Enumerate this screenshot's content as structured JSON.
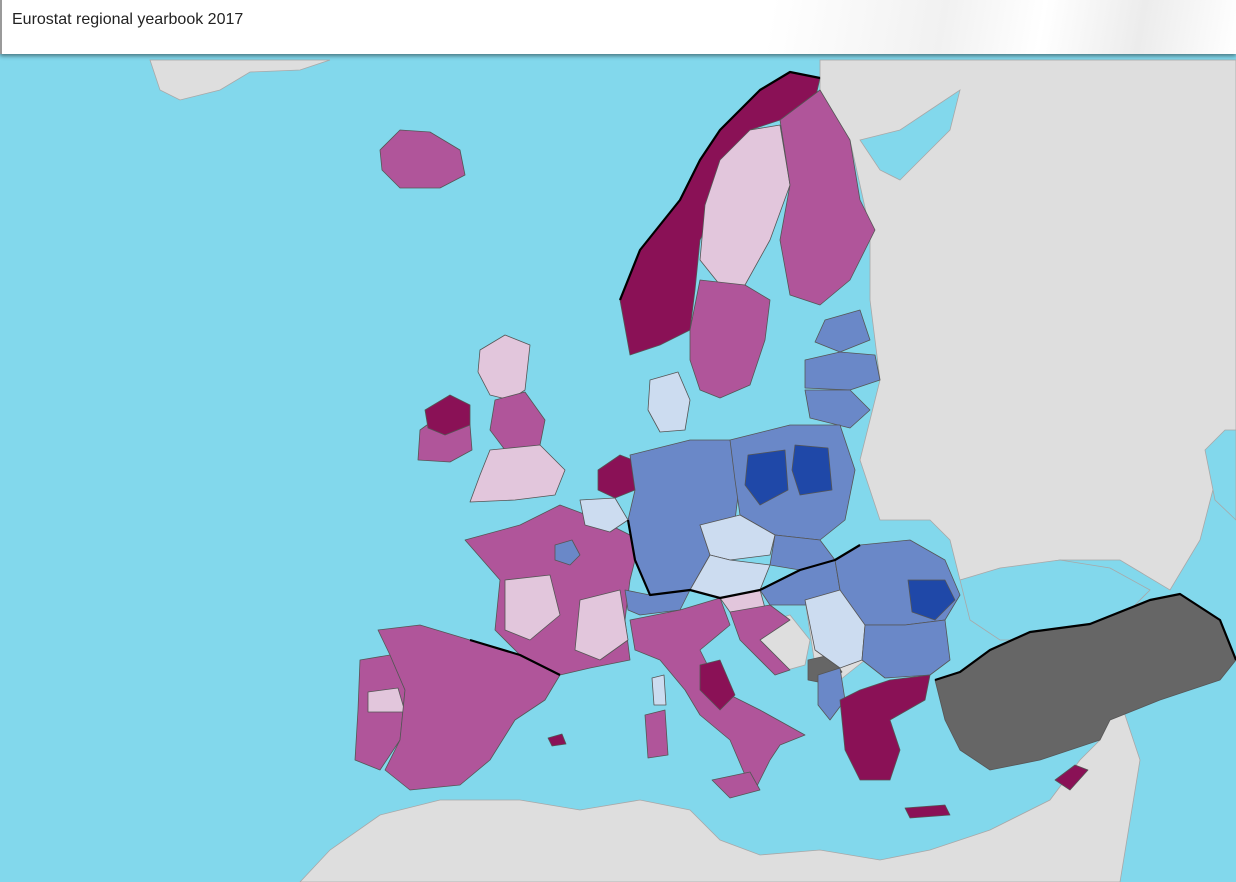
{
  "header": {
    "title": "Eurostat regional yearbook 2017"
  },
  "map": {
    "colors": {
      "sea": "#82d8ec",
      "non_eu_land": "#dedede",
      "no_data": "#666666",
      "class_1_dark_magenta": "#8a1156",
      "class_2_magenta": "#b0559a",
      "class_3_light_pink": "#e2c6dc",
      "class_4_light_blue": "#ccdcf0",
      "class_5_mid_blue": "#6a88c8",
      "class_6_dark_blue": "#1f48a8",
      "borders": "#000000"
    }
  }
}
